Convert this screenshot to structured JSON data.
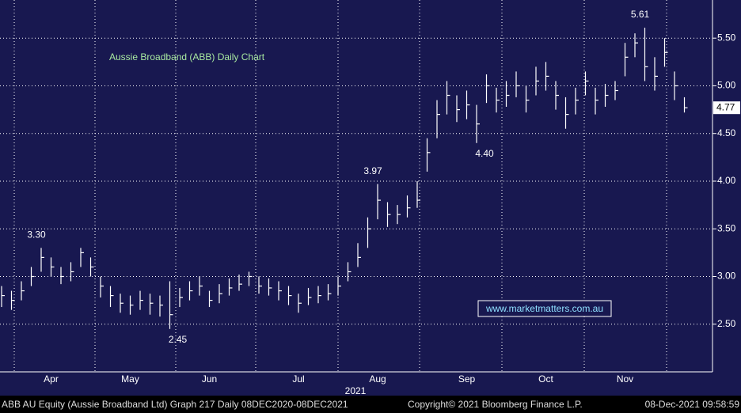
{
  "chart_data": {
    "type": "ohlc",
    "title": "Aussie Broadband (ABB) Daily Chart",
    "watermark": "www.marketmatters.com.au",
    "year_label": "2021",
    "footer_left": "ABB AU Equity (Aussie Broadband Ltd) Graph 217  Daily 08DEC2020-08DEC2021",
    "footer_mid": "Copyright© 2021 Bloomberg Finance L.P.",
    "footer_right": "08-Dec-2021 09:58:59",
    "color": "#ffffff",
    "grid": true,
    "ylim": [
      2.0,
      5.9
    ],
    "yticks": [
      {
        "value": 2.5,
        "label": "2.50"
      },
      {
        "value": 3.0,
        "label": "3.00"
      },
      {
        "value": 3.5,
        "label": "3.50"
      },
      {
        "value": 4.0,
        "label": "4.00"
      },
      {
        "value": 4.5,
        "label": "4.50"
      },
      {
        "value": 5.0,
        "label": "5.00"
      },
      {
        "value": 5.5,
        "label": "5.50"
      }
    ],
    "last_price": {
      "value": 4.77,
      "label": "4.77"
    },
    "categories": [
      null,
      null,
      null,
      null,
      null,
      "Apr",
      null,
      null,
      null,
      null,
      null,
      null,
      null,
      "May",
      null,
      null,
      null,
      null,
      null,
      null,
      null,
      "Jun",
      null,
      null,
      null,
      null,
      null,
      null,
      null,
      null,
      "Jul",
      null,
      null,
      null,
      null,
      null,
      null,
      null,
      "Aug",
      null,
      null,
      null,
      null,
      null,
      null,
      null,
      null,
      "Sep",
      null,
      null,
      null,
      null,
      null,
      null,
      null,
      "Oct",
      null,
      null,
      null,
      null,
      null,
      null,
      null,
      "Nov",
      null,
      null,
      null,
      null,
      null,
      null
    ],
    "high": {
      "values": [
        2.9,
        2.85,
        2.95,
        3.1,
        3.3,
        3.2,
        3.1,
        3.15,
        3.3,
        3.2,
        3.0,
        2.9,
        2.82,
        2.8,
        2.85,
        2.82,
        2.8,
        2.95,
        2.88,
        2.95,
        3.0,
        2.85,
        2.92,
        2.98,
        3.02,
        3.05,
        3.0,
        2.98,
        2.95,
        2.9,
        2.82,
        2.88,
        2.9,
        2.92,
        3.0,
        3.15,
        3.35,
        3.62,
        3.97,
        3.78,
        3.75,
        3.85,
        4.0,
        4.45,
        4.85,
        5.05,
        4.9,
        4.95,
        4.8,
        5.12,
        4.98,
        5.05,
        5.15,
        5.0,
        5.2,
        5.25,
        5.05,
        4.88,
        4.98,
        5.15,
        4.98,
        5.02,
        5.05,
        5.45,
        5.55,
        5.61,
        5.3,
        5.5,
        5.15,
        4.88
      ],
      "value_labels": [
        null,
        null,
        null,
        null,
        "3.30",
        null,
        null,
        null,
        null,
        null,
        null,
        null,
        null,
        null,
        null,
        null,
        null,
        null,
        null,
        null,
        null,
        null,
        null,
        null,
        null,
        null,
        null,
        null,
        null,
        null,
        null,
        null,
        null,
        null,
        null,
        null,
        null,
        null,
        "3.97",
        null,
        null,
        null,
        null,
        null,
        null,
        null,
        null,
        null,
        null,
        null,
        null,
        null,
        null,
        null,
        null,
        null,
        null,
        null,
        null,
        null,
        null,
        null,
        null,
        null,
        null,
        "5.61",
        null,
        null,
        null,
        null
      ]
    },
    "low": {
      "values": [
        2.68,
        2.65,
        2.75,
        2.9,
        3.05,
        3.0,
        2.92,
        2.95,
        3.1,
        3.0,
        2.78,
        2.68,
        2.62,
        2.6,
        2.65,
        2.6,
        2.58,
        2.45,
        2.68,
        2.75,
        2.8,
        2.68,
        2.72,
        2.8,
        2.85,
        2.9,
        2.82,
        2.8,
        2.75,
        2.7,
        2.62,
        2.7,
        2.72,
        2.75,
        2.8,
        2.95,
        3.1,
        3.3,
        3.6,
        3.52,
        3.55,
        3.62,
        3.72,
        4.1,
        4.45,
        4.7,
        4.62,
        4.65,
        4.4,
        4.82,
        4.72,
        4.78,
        4.88,
        4.72,
        4.9,
        4.95,
        4.75,
        4.55,
        4.7,
        4.9,
        4.7,
        4.78,
        4.85,
        5.1,
        5.3,
        5.05,
        4.95,
        5.2,
        4.85,
        4.72
      ],
      "value_labels": [
        null,
        null,
        null,
        null,
        null,
        null,
        null,
        null,
        null,
        null,
        null,
        null,
        null,
        null,
        null,
        null,
        null,
        "2.45",
        null,
        null,
        null,
        null,
        null,
        null,
        null,
        null,
        null,
        null,
        null,
        null,
        null,
        null,
        null,
        null,
        null,
        null,
        null,
        null,
        null,
        null,
        null,
        null,
        null,
        null,
        null,
        null,
        null,
        null,
        "4.40",
        null,
        null,
        null,
        null,
        null,
        null,
        null,
        null,
        null,
        null,
        null,
        null,
        null,
        null,
        null,
        null,
        null,
        null,
        null,
        null,
        null
      ]
    },
    "close": {
      "values": [
        2.8,
        2.75,
        2.85,
        3.0,
        3.2,
        3.1,
        3.0,
        3.05,
        3.25,
        3.1,
        2.9,
        2.8,
        2.72,
        2.7,
        2.75,
        2.72,
        2.7,
        2.6,
        2.78,
        2.85,
        2.9,
        2.75,
        2.82,
        2.88,
        2.92,
        3.0,
        2.9,
        2.88,
        2.85,
        2.8,
        2.72,
        2.78,
        2.8,
        2.82,
        2.9,
        3.05,
        3.2,
        3.5,
        3.8,
        3.65,
        3.65,
        3.72,
        3.8,
        4.3,
        4.7,
        4.9,
        4.75,
        4.8,
        4.6,
        5.0,
        4.85,
        4.9,
        5.0,
        4.85,
        5.05,
        5.1,
        4.9,
        4.7,
        4.85,
        5.05,
        4.85,
        4.9,
        4.95,
        5.3,
        5.45,
        5.2,
        5.1,
        5.35,
        5.0,
        4.77
      ]
    }
  }
}
